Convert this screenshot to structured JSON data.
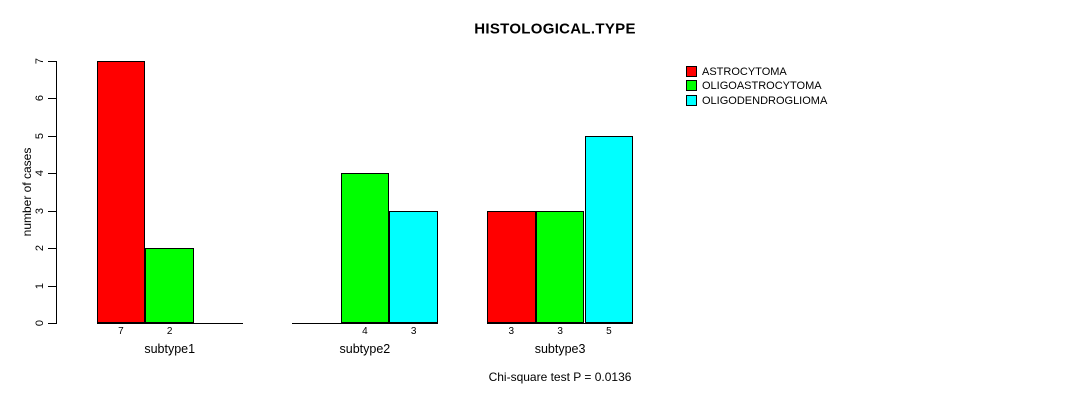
{
  "title": "HISTOLOGICAL.TYPE",
  "footnote": "Chi-square test P = 0.0136",
  "colors": {
    "astrocytoma": "#ff0000",
    "oligoastrocytoma": "#00ff00",
    "oligodendroglioma": "#00ffff",
    "axis": "#000000",
    "background": "#ffffff"
  },
  "chart_data": {
    "type": "bar",
    "grouped": true,
    "title": "HISTOLOGICAL.TYPE",
    "xlabel": "",
    "ylabel": "number of cases",
    "ylim": [
      0,
      7
    ],
    "yticks": [
      0,
      1,
      2,
      3,
      4,
      5,
      6,
      7
    ],
    "categories": [
      "subtype1",
      "subtype2",
      "subtype3"
    ],
    "series": [
      {
        "name": "ASTROCYTOMA",
        "color": "#ff0000",
        "values": [
          7,
          0,
          3
        ]
      },
      {
        "name": "OLIGOASTROCYTOMA",
        "color": "#00ff00",
        "values": [
          2,
          4,
          3
        ]
      },
      {
        "name": "OLIGODENDROGLIOMA",
        "color": "#00ffff",
        "values": [
          0,
          3,
          5
        ]
      }
    ],
    "bar_value_labels": {
      "show": true,
      "hide_zero": true
    },
    "legend_position": "top-right",
    "grid": false,
    "footnote": "Chi-square test P = 0.0136"
  }
}
